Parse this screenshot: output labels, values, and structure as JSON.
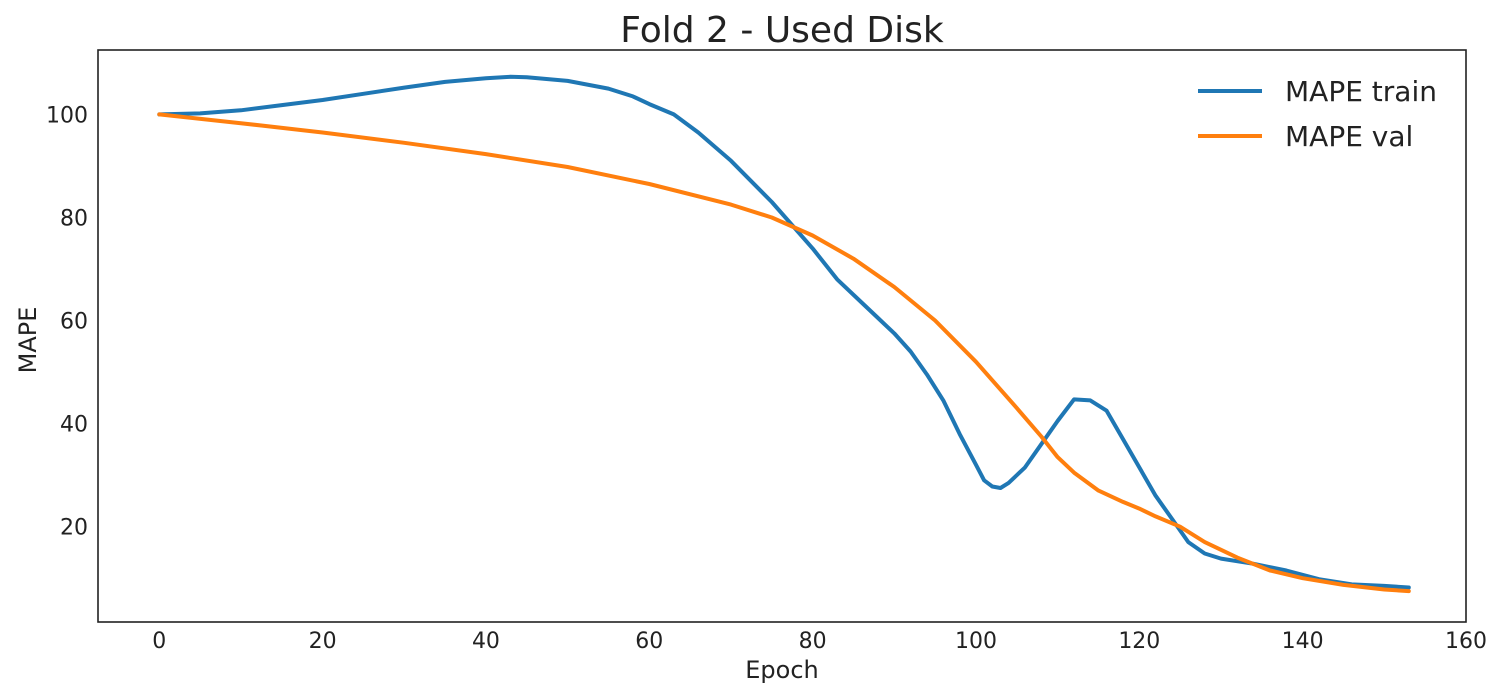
{
  "chart_data": {
    "type": "line",
    "title": "Fold 2 - Used Disk",
    "xlabel": "Epoch",
    "ylabel": "MAPE",
    "xlim": [
      -7.5,
      160
    ],
    "ylim": [
      1.5,
      112.5
    ],
    "xticks": [
      0,
      20,
      40,
      60,
      80,
      100,
      120,
      140,
      160
    ],
    "yticks": [
      20,
      40,
      60,
      80,
      100
    ],
    "grid": false,
    "legend_position": "top-right",
    "series": [
      {
        "name": "MAPE train",
        "color": "#1f77b4",
        "points": [
          [
            0,
            100
          ],
          [
            5,
            100.2
          ],
          [
            10,
            100.8
          ],
          [
            15,
            101.8
          ],
          [
            20,
            102.8
          ],
          [
            25,
            104
          ],
          [
            30,
            105.2
          ],
          [
            35,
            106.3
          ],
          [
            40,
            107
          ],
          [
            43,
            107.3
          ],
          [
            45,
            107.2
          ],
          [
            50,
            106.5
          ],
          [
            55,
            105
          ],
          [
            58,
            103.5
          ],
          [
            60,
            102
          ],
          [
            63,
            100
          ],
          [
            66,
            96.5
          ],
          [
            70,
            91
          ],
          [
            75,
            83
          ],
          [
            80,
            74
          ],
          [
            83,
            68
          ],
          [
            86,
            63.5
          ],
          [
            88,
            60.5
          ],
          [
            90,
            57.5
          ],
          [
            92,
            54
          ],
          [
            94,
            49.5
          ],
          [
            96,
            44.5
          ],
          [
            98,
            38
          ],
          [
            100,
            32
          ],
          [
            101,
            29
          ],
          [
            102,
            27.8
          ],
          [
            103,
            27.5
          ],
          [
            104,
            28.5
          ],
          [
            106,
            31.5
          ],
          [
            108,
            36
          ],
          [
            110,
            40.5
          ],
          [
            112,
            44.7
          ],
          [
            114,
            44.5
          ],
          [
            116,
            42.5
          ],
          [
            118,
            37
          ],
          [
            120,
            31.5
          ],
          [
            122,
            26
          ],
          [
            124,
            21.5
          ],
          [
            126,
            17
          ],
          [
            128,
            14.8
          ],
          [
            130,
            13.8
          ],
          [
            134,
            12.8
          ],
          [
            138,
            11.5
          ],
          [
            142,
            9.8
          ],
          [
            146,
            8.8
          ],
          [
            150,
            8.5
          ],
          [
            153,
            8.2
          ]
        ]
      },
      {
        "name": "MAPE val",
        "color": "#ff7f0e",
        "points": [
          [
            0,
            100
          ],
          [
            10,
            98.3
          ],
          [
            20,
            96.5
          ],
          [
            30,
            94.5
          ],
          [
            40,
            92.3
          ],
          [
            50,
            89.8
          ],
          [
            60,
            86.5
          ],
          [
            70,
            82.5
          ],
          [
            75,
            80
          ],
          [
            80,
            76.5
          ],
          [
            85,
            72
          ],
          [
            90,
            66.5
          ],
          [
            95,
            60
          ],
          [
            100,
            52
          ],
          [
            105,
            43
          ],
          [
            108,
            37.5
          ],
          [
            110,
            33.5
          ],
          [
            112,
            30.5
          ],
          [
            115,
            27
          ],
          [
            118,
            24.8
          ],
          [
            120,
            23.5
          ],
          [
            122,
            22
          ],
          [
            125,
            20
          ],
          [
            128,
            17
          ],
          [
            132,
            14
          ],
          [
            136,
            11.5
          ],
          [
            140,
            10
          ],
          [
            145,
            8.7
          ],
          [
            150,
            7.8
          ],
          [
            153,
            7.5
          ]
        ]
      }
    ]
  }
}
